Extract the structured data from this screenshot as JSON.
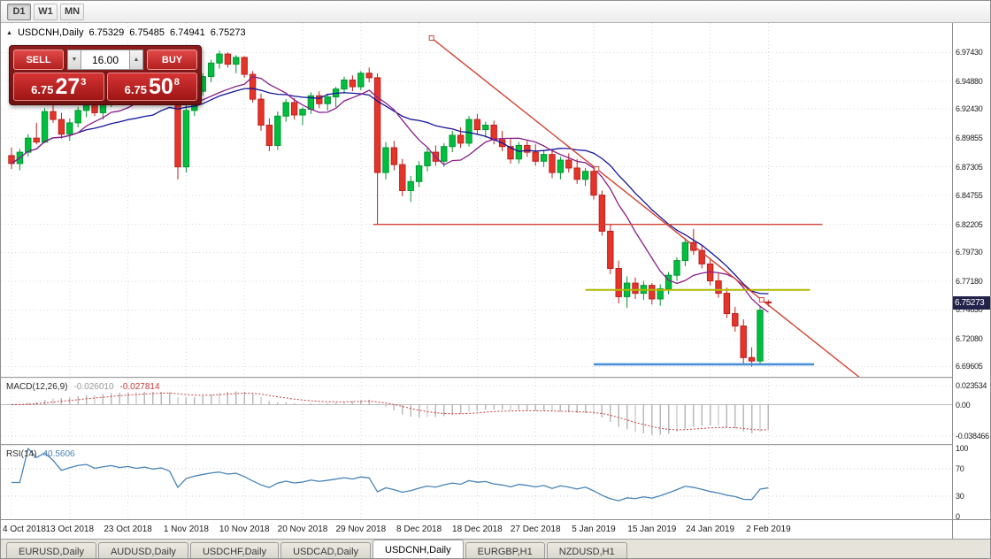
{
  "toolbar": {
    "timeframes": [
      {
        "label": "D1",
        "active": true
      },
      {
        "label": "W1",
        "active": false
      },
      {
        "label": "MN",
        "active": false
      }
    ]
  },
  "chart": {
    "header": {
      "marker": "▲",
      "title": "USDCNH,Daily",
      "open": "6.75329",
      "high": "6.75485",
      "low": "6.74941",
      "close": "6.75273"
    },
    "colors": {
      "up": "#00bf3f",
      "up_border": "#00962f",
      "down": "#e53528",
      "down_border": "#bf1f1f",
      "ma_fast": "#8a1f8a",
      "ma_slow": "#14149c",
      "trendline": "#d34436",
      "hline_red": "#d34436",
      "hline_yellow": "#b0b800",
      "hline_blue": "#4a90d9",
      "grid": "#d9d9d9",
      "bg": "#ffffff"
    },
    "price_range": {
      "top": 7.0005,
      "bottom": 6.687
    },
    "price_axis": {
      "labels": [
        {
          "text": "6.97430",
          "value": 6.9743
        },
        {
          "text": "6.94880",
          "value": 6.9488
        },
        {
          "text": "6.92430",
          "value": 6.9243
        },
        {
          "text": "6.89855",
          "value": 6.89855
        },
        {
          "text": "6.87305",
          "value": 6.87305
        },
        {
          "text": "6.84755",
          "value": 6.84755
        },
        {
          "text": "6.82205",
          "value": 6.82205
        },
        {
          "text": "6.79730",
          "value": 6.7973
        },
        {
          "text": "6.77180",
          "value": 6.7718
        },
        {
          "text": "6.74630",
          "value": 6.7463
        },
        {
          "text": "6.72080",
          "value": 6.7208
        },
        {
          "text": "6.69605",
          "value": 6.69605
        }
      ],
      "current": {
        "text": "6.75273",
        "value": 6.75273
      }
    },
    "ma_fast_period": 9,
    "ma_slow_period": 18,
    "candles": [
      [
        6.883,
        6.89,
        6.871,
        6.876
      ],
      [
        6.876,
        6.889,
        6.87,
        6.886
      ],
      [
        6.886,
        6.902,
        6.882,
        6.8985
      ],
      [
        6.8985,
        6.912,
        6.893,
        6.895
      ],
      [
        6.895,
        6.925,
        6.894,
        6.922
      ],
      [
        6.922,
        6.928,
        6.912,
        6.915
      ],
      [
        6.915,
        6.921,
        6.898,
        6.902
      ],
      [
        6.902,
        6.916,
        6.896,
        6.912
      ],
      [
        6.912,
        6.926,
        6.908,
        6.923
      ],
      [
        6.923,
        6.934,
        6.917,
        6.929
      ],
      [
        6.929,
        6.933,
        6.918,
        6.921
      ],
      [
        6.921,
        6.933,
        6.915,
        6.93
      ],
      [
        6.93,
        6.94,
        6.926,
        6.938
      ],
      [
        6.938,
        6.943,
        6.93,
        6.933
      ],
      [
        6.933,
        6.944,
        6.929,
        6.941
      ],
      [
        6.941,
        6.945,
        6.933,
        6.936
      ],
      [
        6.936,
        6.946,
        6.932,
        6.944
      ],
      [
        6.944,
        6.949,
        6.937,
        6.939
      ],
      [
        6.939,
        6.948,
        6.934,
        6.946
      ],
      [
        6.946,
        6.95,
        6.935,
        6.938
      ],
      [
        6.938,
        6.942,
        6.862,
        6.873
      ],
      [
        6.873,
        6.928,
        6.868,
        6.923
      ],
      [
        6.923,
        6.942,
        6.918,
        6.94
      ],
      [
        6.94,
        6.956,
        6.936,
        6.953
      ],
      [
        6.953,
        6.968,
        6.948,
        6.965
      ],
      [
        6.965,
        6.976,
        6.96,
        6.973
      ],
      [
        6.973,
        6.9745,
        6.961,
        6.964
      ],
      [
        6.964,
        6.972,
        6.956,
        6.97
      ],
      [
        6.97,
        6.971,
        6.952,
        6.955
      ],
      [
        6.955,
        6.958,
        6.93,
        6.933
      ],
      [
        6.933,
        6.938,
        6.905,
        6.91
      ],
      [
        6.91,
        6.916,
        6.887,
        6.892
      ],
      [
        6.892,
        6.922,
        6.888,
        6.918
      ],
      [
        6.918,
        6.933,
        6.913,
        6.93
      ],
      [
        6.93,
        6.934,
        6.915,
        6.919
      ],
      [
        6.919,
        6.926,
        6.91,
        6.924
      ],
      [
        6.924,
        6.939,
        6.92,
        6.936
      ],
      [
        6.936,
        6.94,
        6.925,
        6.929
      ],
      [
        6.929,
        6.938,
        6.923,
        6.935
      ],
      [
        6.935,
        6.944,
        6.926,
        6.942
      ],
      [
        6.942,
        6.953,
        6.938,
        6.95
      ],
      [
        6.95,
        6.954,
        6.94,
        6.944
      ],
      [
        6.944,
        6.958,
        6.941,
        6.956
      ],
      [
        6.956,
        6.961,
        6.948,
        6.952
      ],
      [
        6.952,
        6.956,
        6.822,
        6.868
      ],
      [
        6.868,
        6.895,
        6.862,
        6.89
      ],
      [
        6.89,
        6.896,
        6.87,
        6.875
      ],
      [
        6.875,
        6.88,
        6.847,
        6.852
      ],
      [
        6.852,
        6.865,
        6.842,
        6.86
      ],
      [
        6.86,
        6.878,
        6.855,
        6.874
      ],
      [
        6.874,
        6.89,
        6.869,
        6.886
      ],
      [
        6.886,
        6.892,
        6.874,
        6.878
      ],
      [
        6.878,
        6.894,
        6.873,
        6.891
      ],
      [
        6.891,
        6.905,
        6.886,
        6.901
      ],
      [
        6.901,
        6.908,
        6.89,
        6.894
      ],
      [
        6.894,
        6.918,
        6.891,
        6.915
      ],
      [
        6.915,
        6.92,
        6.902,
        6.906
      ],
      [
        6.906,
        6.913,
        6.899,
        6.91
      ],
      [
        6.91,
        6.914,
        6.893,
        6.897
      ],
      [
        6.897,
        6.905,
        6.887,
        6.891
      ],
      [
        6.891,
        6.898,
        6.876,
        6.88
      ],
      [
        6.88,
        6.895,
        6.876,
        6.892
      ],
      [
        6.892,
        6.897,
        6.882,
        6.886
      ],
      [
        6.886,
        6.893,
        6.874,
        6.878
      ],
      [
        6.878,
        6.888,
        6.873,
        6.884
      ],
      [
        6.884,
        6.889,
        6.863,
        6.868
      ],
      [
        6.868,
        6.882,
        6.862,
        6.879
      ],
      [
        6.879,
        6.885,
        6.868,
        6.872
      ],
      [
        6.872,
        6.88,
        6.858,
        6.862
      ],
      [
        6.862,
        6.872,
        6.856,
        6.869
      ],
      [
        6.869,
        6.871,
        6.844,
        6.848
      ],
      [
        6.848,
        6.852,
        6.812,
        6.816
      ],
      [
        6.816,
        6.822,
        6.778,
        6.783
      ],
      [
        6.783,
        6.79,
        6.752,
        6.758
      ],
      [
        6.758,
        6.776,
        6.748,
        6.77
      ],
      [
        6.77,
        6.775,
        6.756,
        6.761
      ],
      [
        6.761,
        6.772,
        6.755,
        6.768
      ],
      [
        6.768,
        6.77,
        6.751,
        6.756
      ],
      [
        6.756,
        6.769,
        6.75,
        6.765
      ],
      [
        6.765,
        6.78,
        6.76,
        6.777
      ],
      [
        6.777,
        6.793,
        6.772,
        6.79
      ],
      [
        6.79,
        6.81,
        6.785,
        6.806
      ],
      [
        6.806,
        6.818,
        6.795,
        6.799
      ],
      [
        6.799,
        6.804,
        6.783,
        6.787
      ],
      [
        6.787,
        6.791,
        6.768,
        6.772
      ],
      [
        6.772,
        6.779,
        6.757,
        6.761
      ],
      [
        6.761,
        6.766,
        6.739,
        6.743
      ],
      [
        6.743,
        6.749,
        6.727,
        6.732
      ],
      [
        6.732,
        6.738,
        6.699,
        6.704
      ],
      [
        6.704,
        6.713,
        6.696,
        6.701
      ],
      [
        6.701,
        6.75,
        6.698,
        6.746
      ],
      [
        6.75329,
        6.75485,
        6.74941,
        6.75273
      ]
    ],
    "objects": {
      "trendline": {
        "i1": 50.5,
        "p1": 6.9872,
        "i2": 90.2,
        "p2": 6.7552,
        "ray": true
      },
      "hline_resistance": {
        "price": 6.82205,
        "i1": 43.5,
        "i2": 97.5
      },
      "hline_yellow": {
        "price": 6.764,
        "i1": 69,
        "i2": 96
      },
      "hline_blue": {
        "price": 6.698,
        "i1": 70,
        "i2": 96.5
      }
    }
  },
  "macd": {
    "label": "MACD(12,26,9)",
    "value_main": "-0.026010",
    "value_signal": "-0.027814",
    "fast": 12,
    "slow": 26,
    "signal": 9,
    "axis": [
      {
        "text": "0.023534",
        "value": 0.023534
      },
      {
        "text": "0.00",
        "value": 0
      },
      {
        "text": "-0.038466",
        "value": -0.038466
      }
    ],
    "range": {
      "max": 0.032,
      "min": -0.048
    },
    "colors": {
      "histogram": "#b9b9b9",
      "signal": "#cc3a3a"
    }
  },
  "rsi": {
    "label": "RSI(14)",
    "value": "40.5606",
    "period": 14,
    "axis": [
      {
        "text": "100",
        "value": 100
      },
      {
        "text": "70",
        "value": 70
      },
      {
        "text": "30",
        "value": 30
      },
      {
        "text": "0",
        "value": 0
      }
    ],
    "levels": [
      70,
      30
    ],
    "color": "#4a84b8"
  },
  "date_axis": {
    "tick_every": 7,
    "labels": [
      "4 Oct 2018",
      "13 Oct 2018",
      "23 Oct 2018",
      "1 Nov 2018",
      "10 Nov 2018",
      "20 Nov 2018",
      "29 Nov 2018",
      "8 Dec 2018",
      "18 Dec 2018",
      "27 Dec 2018",
      "5 Jan 2019",
      "15 Jan 2019",
      "24 Jan 2019",
      "2 Feb 2019"
    ]
  },
  "trade_panel": {
    "sell_label": "SELL",
    "buy_label": "BUY",
    "volume": "16.00",
    "spin_down": "▼",
    "spin_up": "▲",
    "sell_price": {
      "base": "6.75",
      "pips": "27",
      "sup": "3"
    },
    "buy_price": {
      "base": "6.75",
      "pips": "50",
      "sup": "8"
    }
  },
  "tabs": [
    {
      "label": "EURUSD,Daily",
      "active": false
    },
    {
      "label": "AUDUSD,Daily",
      "active": false
    },
    {
      "label": "USDCHF,Daily",
      "active": false
    },
    {
      "label": "USDCAD,Daily",
      "active": false
    },
    {
      "label": "USDCNH,Daily",
      "active": true
    },
    {
      "label": "EURGBP,H1",
      "active": false
    },
    {
      "label": "NZDUSD,H1",
      "active": false
    }
  ]
}
